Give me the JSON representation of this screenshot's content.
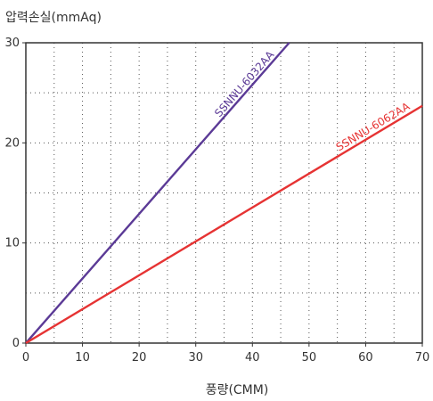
{
  "chart_data": {
    "type": "line",
    "ylabel": "압력손실(mmAq)",
    "xlabel": "풍량(CMM)",
    "xlim": [
      0,
      70
    ],
    "ylim": [
      0,
      30
    ],
    "x_ticks": [
      0,
      10,
      20,
      30,
      40,
      50,
      60,
      70
    ],
    "y_ticks": [
      0,
      10,
      20,
      30
    ],
    "grid": "dotted, every 5 units",
    "series": [
      {
        "name": "SSNNU-6032AA",
        "color": "#5b3a96",
        "x": [
          0,
          46.5
        ],
        "y": [
          0,
          30
        ]
      },
      {
        "name": "SSNNU-6062AA",
        "color": "#e63333",
        "x": [
          0,
          70
        ],
        "y": [
          0,
          23.7
        ]
      }
    ]
  }
}
